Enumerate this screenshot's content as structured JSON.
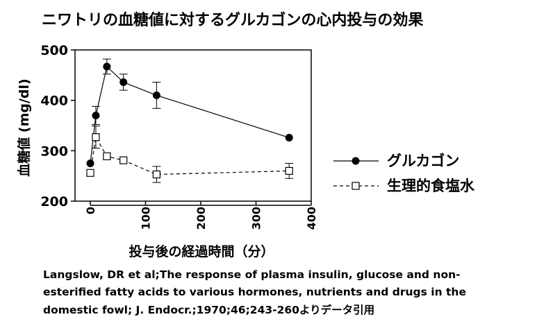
{
  "chart_data": {
    "type": "line",
    "title": "ニワトリの血糖値に対するグルカゴンの心内投与の効果",
    "xlabel": "投与後の経過時間（分）",
    "ylabel": "血糖値 (mg/dl)",
    "xlim": [
      0,
      400
    ],
    "ylim": [
      200,
      500
    ],
    "x_ticks": [
      "0",
      "100",
      "200",
      "300",
      "400"
    ],
    "y_ticks": [
      "200",
      "300",
      "400",
      "500"
    ],
    "grid": false,
    "legend_position": "right",
    "series": [
      {
        "name": "グルカゴン",
        "marker": "filled-circle",
        "line_style": "solid",
        "points": [
          {
            "x": 0,
            "y": 275,
            "err": 0
          },
          {
            "x": 10,
            "y": 370,
            "err": 18
          },
          {
            "x": 30,
            "y": 467,
            "err": 15
          },
          {
            "x": 60,
            "y": 436,
            "err": 16
          },
          {
            "x": 120,
            "y": 410,
            "err": 26
          },
          {
            "x": 360,
            "y": 326,
            "err": 0
          }
        ]
      },
      {
        "name": "生理的食塩水",
        "marker": "open-square",
        "line_style": "dashed",
        "points": [
          {
            "x": 0,
            "y": 256,
            "err": 0
          },
          {
            "x": 10,
            "y": 327,
            "err": 22
          },
          {
            "x": 30,
            "y": 289,
            "err": 0
          },
          {
            "x": 60,
            "y": 281,
            "err": 0
          },
          {
            "x": 120,
            "y": 253,
            "err": 16
          },
          {
            "x": 360,
            "y": 260,
            "err": 15
          }
        ]
      }
    ]
  },
  "citation": {
    "line1": "Langslow, DR et al;The response of plasma insulin, glucose and non-",
    "line2": "esterified fatty acids to various hormones, nutrients and drugs in the",
    "line3": "domestic fowl; J. Endocr.;1970;46;243-260よりデータ引用"
  }
}
